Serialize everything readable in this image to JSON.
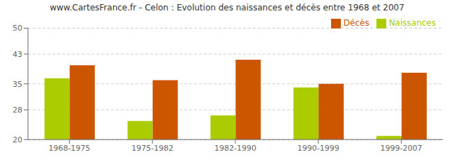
{
  "chart_data": {
    "type": "bar",
    "title": "www.CartesFrance.fr - Celon : Evolution des naissances et décès entre 1968 et 2007",
    "categories": [
      "1968-1975",
      "1975-1982",
      "1982-1990",
      "1990-1999",
      "1999-2007"
    ],
    "series": [
      {
        "name": "Naissances",
        "color": "#aacc00",
        "values": [
          36.5,
          25.0,
          26.5,
          34.0,
          21.0
        ]
      },
      {
        "name": "Décès",
        "color": "#cc5500",
        "values": [
          40.0,
          36.0,
          41.5,
          35.0,
          38.0
        ]
      }
    ],
    "ylim": [
      20,
      50
    ],
    "yticks": [
      20,
      28,
      35,
      43,
      50
    ],
    "grid": true,
    "legend": "upper right"
  }
}
